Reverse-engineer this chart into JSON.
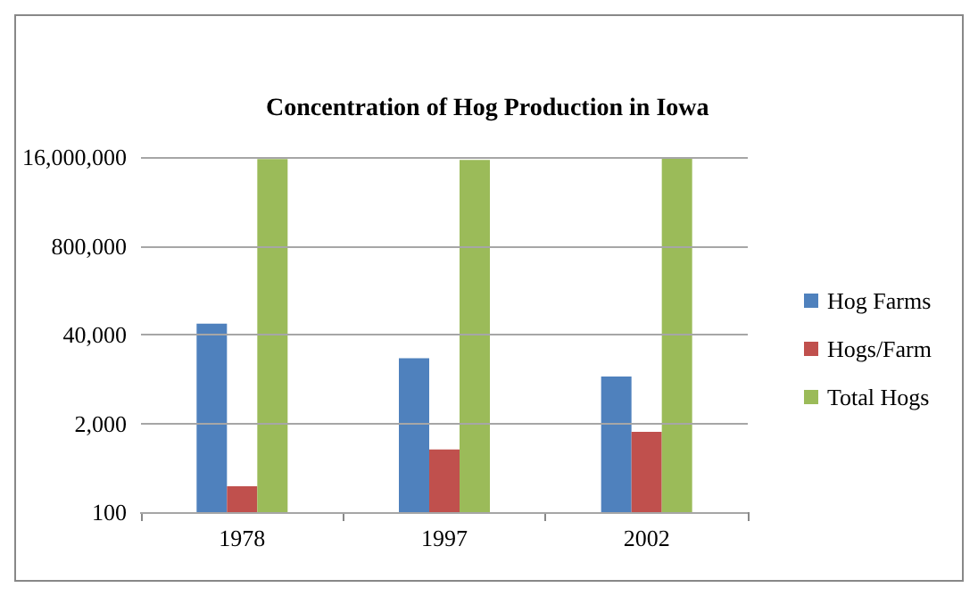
{
  "chart_data": {
    "type": "bar",
    "title": "Concentration of Hog Production in Iowa",
    "categories": [
      "1978",
      "1997",
      "2002"
    ],
    "series": [
      {
        "name": "Hog Farms",
        "color": "#4f81bd",
        "values": [
          58000,
          18000,
          9700
        ]
      },
      {
        "name": "Hogs/Farm",
        "color": "#c0504d",
        "values": [
          240,
          830,
          1500
        ]
      },
      {
        "name": "Total Hogs",
        "color": "#9bbb59",
        "values": [
          15000000,
          14500000,
          15900000
        ]
      }
    ],
    "log": true,
    "ylim": [
      100,
      16000000
    ],
    "yticks": [
      100,
      {
        "value": 2000,
        "label": "2,000"
      },
      {
        "value": 40000,
        "label": "40,000"
      },
      {
        "value": 800000,
        "label": "800,000"
      },
      {
        "value": 16000000,
        "label": "16,000,000"
      }
    ],
    "grid": "y",
    "legend": "right"
  }
}
